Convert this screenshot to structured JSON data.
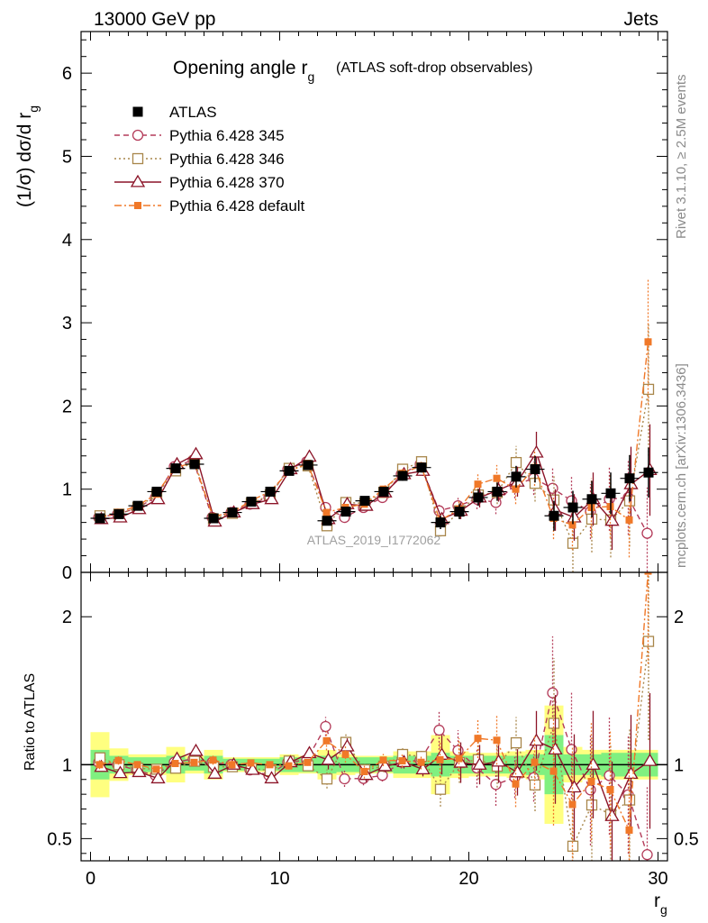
{
  "header": {
    "left": "13000 GeV pp",
    "right": "Jets"
  },
  "side_labels": {
    "rivet": "Rivet 3.1.10, ≥ 2.5M events",
    "mcplots": "mcplots.cern.ch [arXiv:1306.3436]"
  },
  "chart_data": {
    "type": "line",
    "title": "Opening angle r",
    "title_sub": "g",
    "title_suffix": "(ATLAS soft-drop observables)",
    "ylabel": "(1/σ) dσ/d r",
    "ylabel_sub": "g",
    "xlabel": "r",
    "xlabel_sub": "g",
    "watermark": "ATLAS_2019_I1772062",
    "ratio_ylabel": "Ratio to ATLAS",
    "xlim": [
      -0.5,
      30.5
    ],
    "ylim": [
      0,
      6.5
    ],
    "ratio_ylim": [
      0.35,
      2.3
    ],
    "x_ticks": [
      "0",
      "10",
      "20",
      "30"
    ],
    "y_ticks": [
      "0",
      "1",
      "2",
      "3",
      "4",
      "5",
      "6"
    ],
    "ratio_ticks": [
      "0.5",
      "1",
      "2"
    ],
    "x": [
      0.5,
      1.5,
      2.5,
      3.5,
      4.5,
      5.5,
      6.5,
      7.5,
      8.5,
      9.5,
      10.5,
      11.5,
      12.5,
      13.5,
      14.5,
      15.5,
      16.5,
      17.5,
      18.5,
      19.5,
      20.5,
      21.5,
      22.5,
      23.5,
      24.5,
      25.5,
      26.5,
      27.5,
      28.5,
      29.5
    ],
    "reference": {
      "name": "ATLAS",
      "color": "#000000",
      "values": [
        0.65,
        0.7,
        0.8,
        0.97,
        1.25,
        1.3,
        0.65,
        0.72,
        0.85,
        0.97,
        1.22,
        1.29,
        0.62,
        0.73,
        0.86,
        0.97,
        1.16,
        1.26,
        0.6,
        0.73,
        0.9,
        0.97,
        1.15,
        1.24,
        0.68,
        0.78,
        0.88,
        0.95,
        1.13,
        1.2
      ],
      "errors": [
        0.03,
        0.03,
        0.04,
        0.04,
        0.05,
        0.05,
        0.03,
        0.03,
        0.03,
        0.04,
        0.05,
        0.05,
        0.04,
        0.04,
        0.05,
        0.05,
        0.06,
        0.06,
        0.08,
        0.09,
        0.1,
        0.11,
        0.13,
        0.16,
        0.18,
        0.2,
        0.22,
        0.25,
        0.28,
        0.3
      ],
      "band_inner": [
        0.1,
        0.06,
        0.05,
        0.05,
        0.06,
        0.04,
        0.06,
        0.04,
        0.04,
        0.04,
        0.05,
        0.05,
        0.06,
        0.05,
        0.05,
        0.05,
        0.06,
        0.06,
        0.08,
        0.06,
        0.06,
        0.06,
        0.06,
        0.07,
        0.2,
        0.07,
        0.07,
        0.08,
        0.08,
        0.08
      ],
      "band_outer": [
        0.22,
        0.11,
        0.07,
        0.07,
        0.12,
        0.06,
        0.1,
        0.05,
        0.05,
        0.05,
        0.07,
        0.06,
        0.1,
        0.07,
        0.06,
        0.06,
        0.09,
        0.09,
        0.2,
        0.09,
        0.08,
        0.08,
        0.09,
        0.1,
        0.4,
        0.12,
        0.1,
        0.1,
        0.1,
        0.1
      ]
    },
    "series": [
      {
        "name": "Pythia 6.428 345",
        "color": "#b43c5a",
        "marker": "circle",
        "dash": "6,4",
        "values": [
          0.66,
          0.7,
          0.77,
          0.9,
          1.27,
          1.35,
          0.66,
          0.72,
          0.82,
          0.9,
          1.24,
          1.33,
          0.78,
          0.66,
          0.78,
          0.9,
          1.18,
          1.3,
          0.74,
          0.8,
          0.88,
          0.84,
          1.05,
          1.13,
          1.01,
          0.86,
          0.73,
          0.88,
          0.9,
          0.47
        ],
        "errors": [
          0.02,
          0.02,
          0.02,
          0.02,
          0.03,
          0.03,
          0.02,
          0.02,
          0.02,
          0.02,
          0.03,
          0.03,
          0.04,
          0.04,
          0.04,
          0.04,
          0.05,
          0.06,
          0.08,
          0.1,
          0.12,
          0.14,
          0.16,
          0.2,
          0.26,
          0.3,
          0.33,
          0.38,
          0.45,
          0.55
        ]
      },
      {
        "name": "Pythia 6.428 346",
        "color": "#a8864a",
        "marker": "square",
        "dash": "2,3",
        "values": [
          0.68,
          0.7,
          0.78,
          0.94,
          1.22,
          1.33,
          0.64,
          0.71,
          0.83,
          0.93,
          1.25,
          1.28,
          0.56,
          0.84,
          0.83,
          0.96,
          1.24,
          1.33,
          0.5,
          0.74,
          0.93,
          0.96,
          1.32,
          1.07,
          0.87,
          0.35,
          0.64,
          0.63,
          0.86,
          2.2
        ],
        "errors": [
          0.02,
          0.02,
          0.02,
          0.02,
          0.03,
          0.03,
          0.02,
          0.02,
          0.02,
          0.02,
          0.03,
          0.03,
          0.04,
          0.04,
          0.04,
          0.04,
          0.05,
          0.06,
          0.07,
          0.1,
          0.12,
          0.14,
          0.2,
          0.22,
          0.3,
          0.35,
          0.4,
          0.45,
          0.55,
          0.8
        ]
      },
      {
        "name": "Pythia 6.428 370",
        "color": "#8c1428",
        "marker": "triangle",
        "dash": "",
        "values": [
          0.64,
          0.66,
          0.76,
          0.88,
          1.3,
          1.42,
          0.61,
          0.72,
          0.82,
          0.88,
          1.24,
          1.39,
          0.64,
          0.82,
          0.8,
          0.96,
          1.18,
          1.22,
          0.64,
          0.74,
          0.9,
          0.99,
          1.09,
          1.44,
          0.75,
          0.66,
          0.88,
          0.62,
          1.06,
          1.23
        ],
        "errors": [
          0.02,
          0.02,
          0.02,
          0.02,
          0.03,
          0.03,
          0.02,
          0.02,
          0.02,
          0.02,
          0.03,
          0.03,
          0.04,
          0.04,
          0.04,
          0.04,
          0.05,
          0.06,
          0.08,
          0.1,
          0.12,
          0.14,
          0.18,
          0.25,
          0.25,
          0.28,
          0.32,
          0.35,
          0.45,
          0.55
        ]
      },
      {
        "name": "Pythia 6.428 default",
        "color": "#f07828",
        "marker": "filled-square",
        "dash": "8,3,2,3",
        "values": [
          0.65,
          0.72,
          0.8,
          0.94,
          1.26,
          1.32,
          0.67,
          0.72,
          0.86,
          0.97,
          1.21,
          1.31,
          0.72,
          0.78,
          0.82,
          1.0,
          1.19,
          1.28,
          0.62,
          0.76,
          1.06,
          1.13,
          1.0,
          1.26,
          0.65,
          0.57,
          0.78,
          0.79,
          0.63,
          2.77
        ],
        "errors": [
          0.02,
          0.02,
          0.02,
          0.02,
          0.03,
          0.03,
          0.02,
          0.02,
          0.02,
          0.02,
          0.03,
          0.03,
          0.04,
          0.04,
          0.04,
          0.04,
          0.05,
          0.06,
          0.07,
          0.1,
          0.12,
          0.16,
          0.18,
          0.22,
          0.25,
          0.3,
          0.35,
          0.38,
          0.45,
          0.75
        ]
      }
    ]
  }
}
